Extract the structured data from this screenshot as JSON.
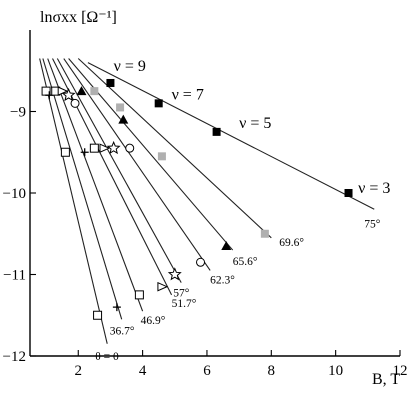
{
  "chart_data": {
    "type": "scatter",
    "ylabel": "lnσxx [Ω⁻¹]",
    "xlabel": "B, T",
    "xlim": [
      0.5,
      12
    ],
    "ylim": [
      -12,
      -8
    ],
    "xticks": [
      2,
      4,
      6,
      8,
      10,
      12
    ],
    "yticks": [
      -9,
      -10,
      -11,
      -12
    ],
    "grid": false,
    "series": [
      {
        "name": "θ = 0",
        "marker": "square-open",
        "color": "#000000",
        "fit": [
          [
            0.8,
            -8.35
          ],
          [
            2.9,
            -11.85
          ]
        ],
        "points": [
          [
            1.0,
            -8.75
          ],
          [
            1.6,
            -9.5
          ],
          [
            2.6,
            -11.5
          ]
        ]
      },
      {
        "name": "36.7°",
        "marker": "plus",
        "color": "#000000",
        "fit": [
          [
            0.9,
            -8.35
          ],
          [
            3.35,
            -11.55
          ]
        ],
        "points": [
          [
            1.1,
            -8.8
          ],
          [
            2.2,
            -9.5
          ],
          [
            3.2,
            -11.4
          ]
        ]
      },
      {
        "name": "46.9°",
        "marker": "square-open",
        "color": "#000000",
        "fit": [
          [
            1.05,
            -8.35
          ],
          [
            4.0,
            -11.45
          ]
        ],
        "points": [
          [
            1.3,
            -8.75
          ],
          [
            2.5,
            -9.45
          ],
          [
            3.9,
            -11.25
          ]
        ]
      },
      {
        "name": "51.7°",
        "marker": "triangle-right",
        "color": "#000000",
        "fit": [
          [
            1.2,
            -8.35
          ],
          [
            4.9,
            -11.25
          ]
        ],
        "points": [
          [
            1.5,
            -8.75
          ],
          [
            2.8,
            -9.45
          ],
          [
            4.6,
            -11.15
          ]
        ]
      },
      {
        "name": "57°",
        "marker": "star",
        "color": "#000000",
        "fit": [
          [
            1.35,
            -8.35
          ],
          [
            5.2,
            -11.1
          ]
        ],
        "points": [
          [
            1.7,
            -8.8
          ],
          [
            3.1,
            -9.45
          ],
          [
            5.0,
            -11.0
          ]
        ]
      },
      {
        "name": "62.3°",
        "marker": "circle-open",
        "color": "#000000",
        "fit": [
          [
            1.55,
            -8.35
          ],
          [
            6.1,
            -10.95
          ]
        ],
        "points": [
          [
            1.9,
            -8.9
          ],
          [
            3.6,
            -9.45
          ],
          [
            5.8,
            -10.85
          ]
        ]
      },
      {
        "name": "65.6°",
        "marker": "triangle",
        "color": "#000000",
        "fit": [
          [
            1.7,
            -8.35
          ],
          [
            6.8,
            -10.7
          ]
        ],
        "points": [
          [
            2.1,
            -8.75
          ],
          [
            3.4,
            -9.1
          ],
          [
            6.6,
            -10.65
          ]
        ]
      },
      {
        "name": "69.6°",
        "marker": "square-gray",
        "color": "#b0b0b0",
        "fit": [
          [
            2.0,
            -8.35
          ],
          [
            8.0,
            -10.55
          ]
        ],
        "points": [
          [
            2.5,
            -8.75
          ],
          [
            3.3,
            -8.95
          ],
          [
            4.6,
            -9.55
          ],
          [
            7.8,
            -10.5
          ]
        ]
      },
      {
        "name": "75°",
        "marker": "square-filled",
        "color": "#000000",
        "fit": [
          [
            2.3,
            -8.4
          ],
          [
            11.2,
            -10.2
          ]
        ],
        "points": [
          [
            3.0,
            -8.65
          ],
          [
            4.5,
            -8.9
          ],
          [
            6.3,
            -9.25
          ],
          [
            10.4,
            -10.0
          ]
        ]
      }
    ],
    "series_labels": [
      "θ = 0",
      "36.7°",
      "46.9°",
      "51.7°",
      "57°",
      "62.3°",
      "65.6°",
      "69.6°",
      "75°"
    ],
    "annotations": [
      {
        "text": "ν = 9",
        "x": 3.1,
        "y": -8.5
      },
      {
        "text": "ν = 7",
        "x": 4.9,
        "y": -8.85
      },
      {
        "text": "ν = 5",
        "x": 7.0,
        "y": -9.2
      },
      {
        "text": "ν = 3",
        "x": 10.7,
        "y": -10.0
      }
    ]
  }
}
